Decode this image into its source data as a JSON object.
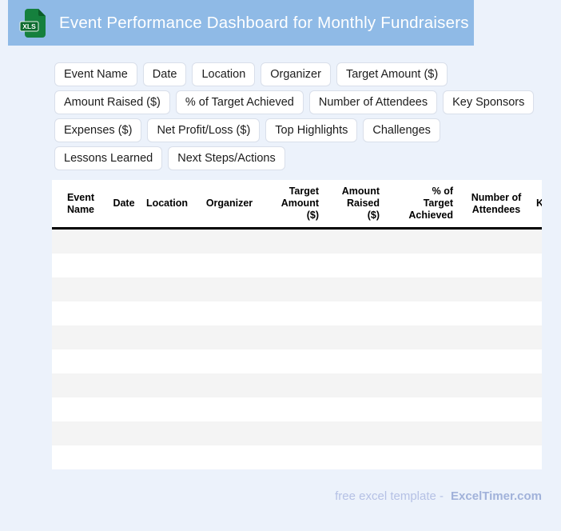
{
  "banner": {
    "title": "Event Performance Dashboard for Monthly Fundraisers",
    "icon_label": "XLS"
  },
  "colors": {
    "page_bg": "#ecf2fb",
    "banner_bg": "#8fbae6",
    "icon_green": "#15803d",
    "icon_green_dark": "#0b5d28",
    "icon_badge_green": "#0d6b2f",
    "chip_border": "#d9dfea",
    "row_stripe": "#f4f4f4",
    "header_rule": "#000000",
    "footer_text": "#b5c1e5",
    "footer_brand": "#a1b2da"
  },
  "chips": [
    "Event Name",
    "Date",
    "Location",
    "Organizer",
    "Target Amount ($)",
    "Amount Raised ($)",
    "% of Target Achieved",
    "Number of Attendees",
    "Key Sponsors",
    "Expenses ($)",
    "Net Profit/Loss ($)",
    "Top Highlights",
    "Challenges",
    "Lessons Learned",
    "Next Steps/Actions"
  ],
  "table": {
    "columns": [
      "Event\nName",
      "Date",
      "Location",
      "Organizer",
      "Target\nAmount\n($)",
      "Amount\nRaised\n($)",
      "% of\nTarget\nAchieved",
      "Number of\nAttendees",
      "Key Sponsors"
    ],
    "row_count": 10,
    "rows": []
  },
  "footer": {
    "text": "free excel template -",
    "brand": "ExcelTimer.com"
  }
}
